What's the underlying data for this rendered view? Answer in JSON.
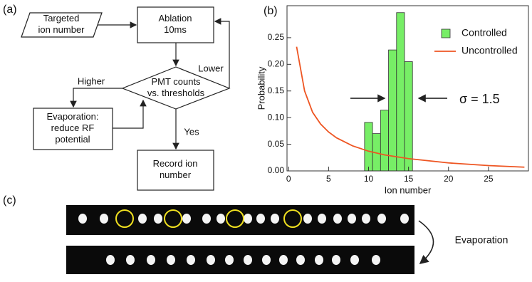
{
  "panel_labels": [
    "(a)",
    "(b)",
    "(c)"
  ],
  "flowchart": {
    "nodes": [
      {
        "lines": [
          "Targeted",
          "ion number"
        ]
      },
      {
        "lines": [
          "Ablation",
          "10ms"
        ]
      },
      {
        "lines": [
          "PMT counts",
          "vs. thresholds"
        ]
      },
      {
        "lines": [
          "Evaporation:",
          "reduce RF",
          "potential"
        ]
      },
      {
        "lines": [
          "Record ion",
          "number"
        ]
      }
    ],
    "edge_labels": [
      "Lower",
      "Higher",
      "Yes"
    ]
  },
  "chart_data": {
    "type": "histogram",
    "xlabel": "Ion number",
    "ylabel": "Probability",
    "xlim": [
      -0.2,
      30
    ],
    "ylim": [
      0,
      0.31
    ],
    "xticks": [
      0,
      5,
      10,
      15,
      20,
      25
    ],
    "yticks": [
      {
        "value": 0,
        "label": "0.00"
      },
      0.05,
      {
        "value": 0.1,
        "label": "0.10"
      },
      0.15,
      {
        "value": 0.2,
        "label": "0.20"
      },
      0.25
    ],
    "bins": [
      9.5,
      10.5,
      11.5,
      12.5,
      13.5,
      14.5,
      15.5
    ],
    "legend": "upper right",
    "annotation": "σ = 1.5",
    "series": [
      {
        "name": "Controlled",
        "color": "#77ee66",
        "values": [
          0.091,
          0.07,
          0.114,
          0.227,
          0.297,
          0.205
        ]
      },
      {
        "name": "Uncontrolled",
        "type": "line",
        "color": "#ee5522",
        "x": [
          1,
          2,
          3,
          4,
          5,
          6,
          8,
          10,
          12,
          15,
          20,
          25,
          29.5
        ],
        "values": [
          0.233,
          0.15,
          0.11,
          0.088,
          0.073,
          0.062,
          0.047,
          0.037,
          0.03,
          0.023,
          0.015,
          0.01,
          0.007
        ]
      }
    ]
  },
  "evaporation_label": "Evaporation"
}
